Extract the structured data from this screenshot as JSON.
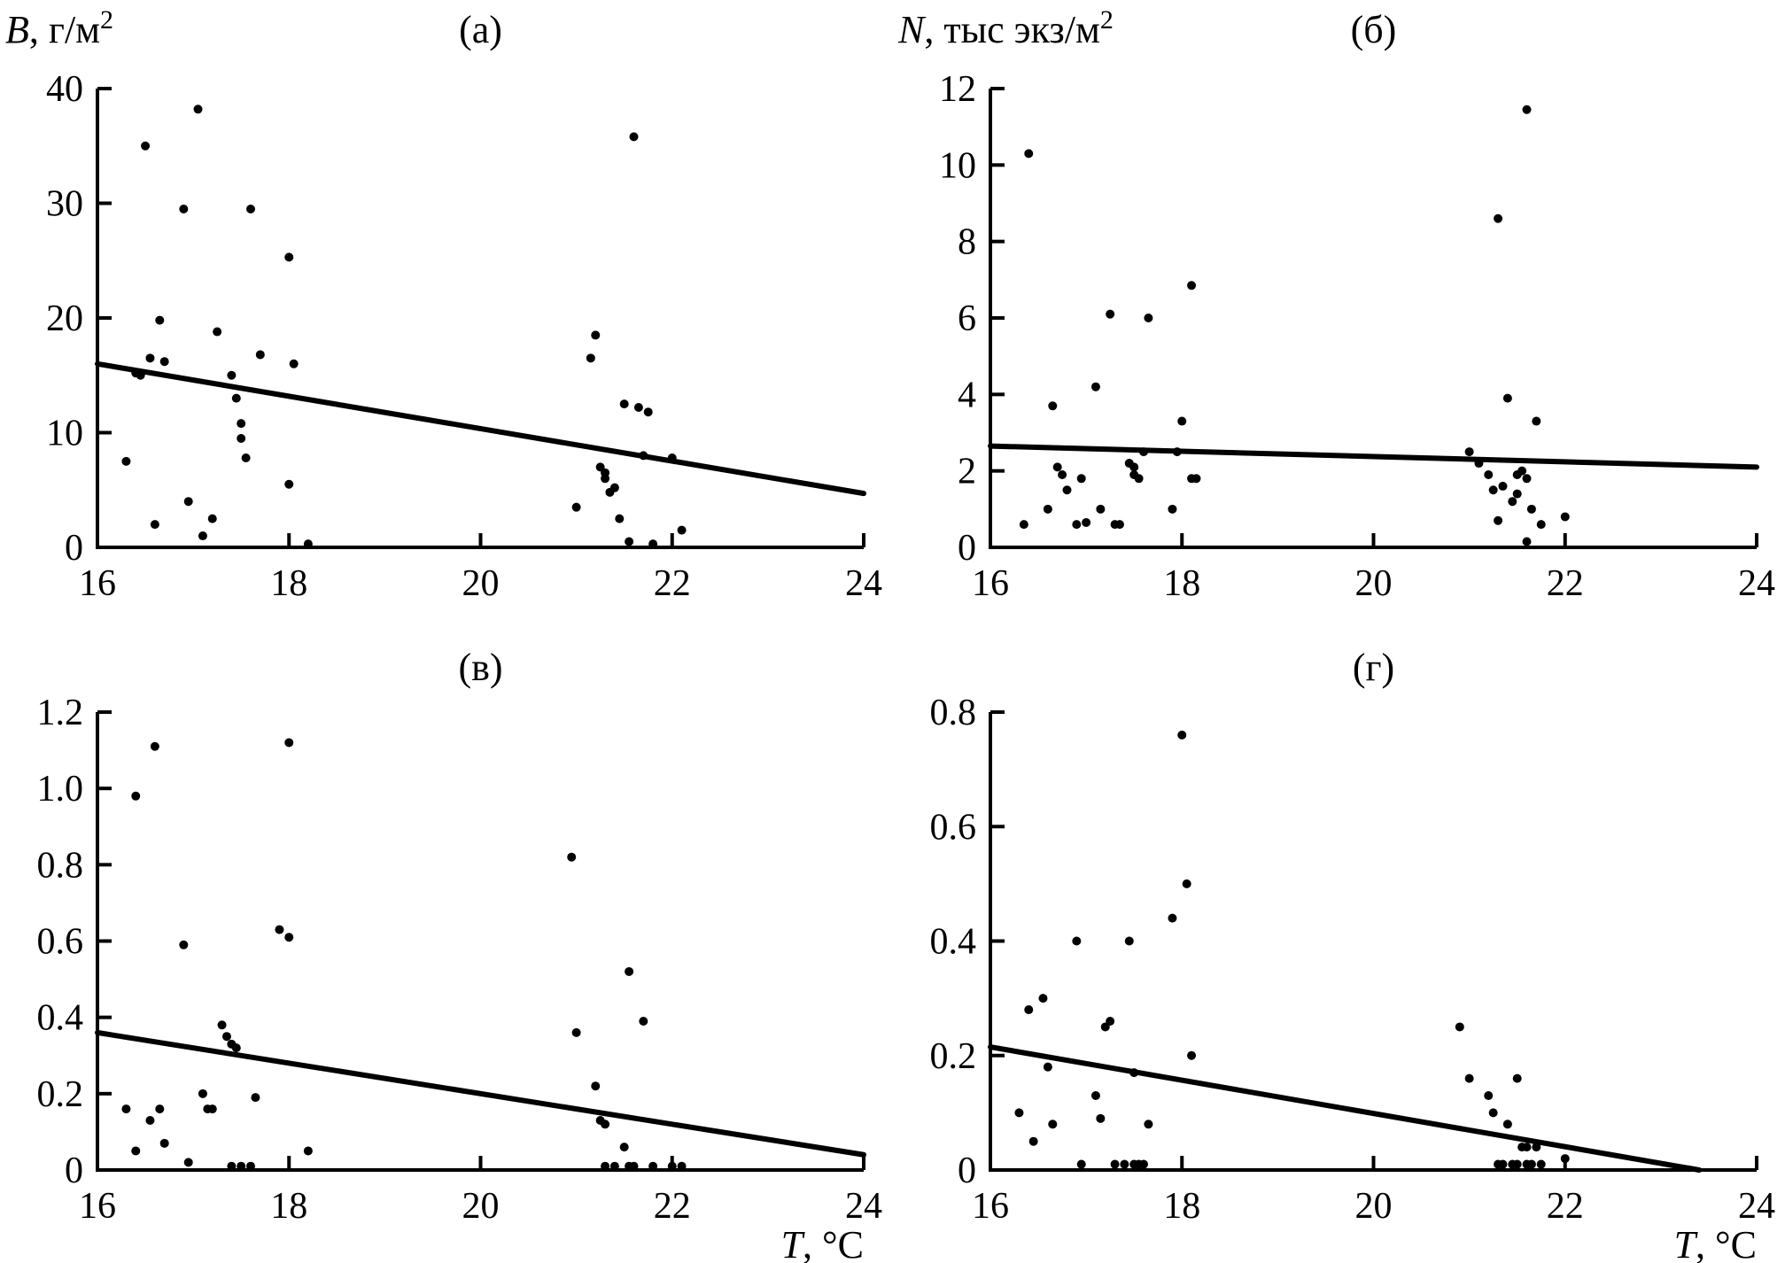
{
  "figure": {
    "background": "#ffffff",
    "ink": "#000000",
    "description_labels": {
      "panel_a": "(а)",
      "panel_b": "(б)",
      "panel_v": "(в)",
      "panel_g": "(г)"
    }
  },
  "chart_data": [
    {
      "id": "a",
      "type": "scatter",
      "position": "top-left",
      "title": "(а)",
      "ylabel": {
        "var": "B",
        "rest": ", г/м",
        "sup": "2"
      },
      "xlabel": null,
      "row": "top",
      "xlim": [
        16,
        24
      ],
      "ylim": [
        0,
        40
      ],
      "xticks": [
        16,
        18,
        20,
        22,
        24
      ],
      "xtick_labels": [
        "16",
        "18",
        "20",
        "22",
        "24"
      ],
      "yticks": [
        0,
        10,
        20,
        30,
        40
      ],
      "ytick_labels": [
        "0",
        "10",
        "20",
        "30",
        "40"
      ],
      "trend": {
        "x1": 16,
        "y1": 16.0,
        "x2": 24,
        "y2": 4.7
      },
      "points": [
        [
          16.3,
          7.5
        ],
        [
          16.4,
          15.2
        ],
        [
          16.45,
          15.0
        ],
        [
          16.5,
          35.0
        ],
        [
          16.55,
          16.5
        ],
        [
          16.6,
          2.0
        ],
        [
          16.65,
          19.8
        ],
        [
          16.7,
          16.2
        ],
        [
          16.9,
          29.5
        ],
        [
          16.95,
          4.0
        ],
        [
          17.05,
          38.2
        ],
        [
          17.1,
          1.0
        ],
        [
          17.2,
          2.5
        ],
        [
          17.25,
          18.8
        ],
        [
          17.4,
          15.0
        ],
        [
          17.45,
          13.0
        ],
        [
          17.5,
          10.8
        ],
        [
          17.5,
          9.5
        ],
        [
          17.55,
          7.8
        ],
        [
          17.6,
          29.5
        ],
        [
          17.7,
          16.8
        ],
        [
          18.0,
          25.3
        ],
        [
          18.0,
          5.5
        ],
        [
          18.05,
          16.0
        ],
        [
          18.2,
          0.3
        ],
        [
          21.0,
          3.5
        ],
        [
          21.15,
          16.5
        ],
        [
          21.2,
          18.5
        ],
        [
          21.25,
          7.0
        ],
        [
          21.3,
          6.5
        ],
        [
          21.3,
          6.0
        ],
        [
          21.35,
          4.8
        ],
        [
          21.4,
          5.2
        ],
        [
          21.45,
          2.5
        ],
        [
          21.5,
          12.5
        ],
        [
          21.55,
          0.5
        ],
        [
          21.6,
          35.8
        ],
        [
          21.65,
          12.2
        ],
        [
          21.7,
          8.0
        ],
        [
          21.75,
          11.8
        ],
        [
          21.8,
          0.3
        ],
        [
          22.0,
          7.8
        ],
        [
          22.1,
          1.5
        ]
      ]
    },
    {
      "id": "b",
      "type": "scatter",
      "position": "top-right",
      "title": "(б)",
      "ylabel": {
        "var": "N",
        "rest": ", тыс экз/м",
        "sup": "2"
      },
      "xlabel": null,
      "row": "top",
      "xlim": [
        16,
        24
      ],
      "ylim": [
        0,
        12
      ],
      "xticks": [
        16,
        18,
        20,
        22,
        24
      ],
      "xtick_labels": [
        "16",
        "18",
        "20",
        "22",
        "24"
      ],
      "yticks": [
        0,
        2,
        4,
        6,
        8,
        10,
        12
      ],
      "ytick_labels": [
        "0",
        "2",
        "4",
        "6",
        "8",
        "10",
        "12"
      ],
      "trend": {
        "x1": 16,
        "y1": 2.65,
        "x2": 24,
        "y2": 2.1
      },
      "points": [
        [
          16.35,
          0.6
        ],
        [
          16.4,
          10.3
        ],
        [
          16.6,
          1.0
        ],
        [
          16.65,
          3.7
        ],
        [
          16.7,
          2.1
        ],
        [
          16.75,
          1.9
        ],
        [
          16.8,
          1.5
        ],
        [
          16.9,
          0.6
        ],
        [
          16.95,
          1.8
        ],
        [
          17.0,
          0.65
        ],
        [
          17.1,
          4.2
        ],
        [
          17.15,
          1.0
        ],
        [
          17.25,
          6.1
        ],
        [
          17.3,
          0.6
        ],
        [
          17.35,
          0.6
        ],
        [
          17.45,
          2.2
        ],
        [
          17.5,
          1.9
        ],
        [
          17.5,
          2.1
        ],
        [
          17.55,
          1.8
        ],
        [
          17.6,
          2.5
        ],
        [
          17.65,
          6.0
        ],
        [
          17.9,
          1.0
        ],
        [
          17.95,
          2.5
        ],
        [
          18.0,
          3.3
        ],
        [
          18.1,
          6.85
        ],
        [
          18.1,
          1.8
        ],
        [
          18.15,
          1.8
        ],
        [
          21.0,
          2.5
        ],
        [
          21.1,
          2.2
        ],
        [
          21.2,
          1.9
        ],
        [
          21.25,
          1.5
        ],
        [
          21.3,
          8.6
        ],
        [
          21.3,
          0.7
        ],
        [
          21.35,
          1.6
        ],
        [
          21.4,
          3.9
        ],
        [
          21.45,
          1.2
        ],
        [
          21.5,
          1.9
        ],
        [
          21.5,
          1.4
        ],
        [
          21.55,
          2.0
        ],
        [
          21.6,
          1.8
        ],
        [
          21.6,
          11.45
        ],
        [
          21.6,
          0.15
        ],
        [
          21.65,
          1.0
        ],
        [
          21.7,
          3.3
        ],
        [
          21.75,
          0.6
        ],
        [
          22.0,
          0.8
        ]
      ]
    },
    {
      "id": "v",
      "type": "scatter",
      "position": "bottom-left",
      "title": "(в)",
      "ylabel": null,
      "xlabel": {
        "var": "T",
        "rest": ", °C"
      },
      "row": "bottom",
      "xlim": [
        16,
        24
      ],
      "ylim": [
        0,
        1.2
      ],
      "xticks": [
        16,
        18,
        20,
        22,
        24
      ],
      "xtick_labels": [
        "16",
        "18",
        "20",
        "22",
        "24"
      ],
      "yticks": [
        0,
        0.2,
        0.4,
        0.6,
        0.8,
        1.0,
        1.2
      ],
      "ytick_labels": [
        "0",
        "0.2",
        "0.4",
        "0.6",
        "0.8",
        "1.0",
        "1.2"
      ],
      "trend": {
        "x1": 16,
        "y1": 0.36,
        "x2": 24,
        "y2": 0.04
      },
      "points": [
        [
          16.3,
          0.16
        ],
        [
          16.4,
          0.98
        ],
        [
          16.4,
          0.05
        ],
        [
          16.55,
          0.13
        ],
        [
          16.6,
          1.11
        ],
        [
          16.65,
          0.16
        ],
        [
          16.7,
          0.07
        ],
        [
          16.9,
          0.59
        ],
        [
          16.95,
          0.02
        ],
        [
          17.1,
          0.2
        ],
        [
          17.15,
          0.16
        ],
        [
          17.2,
          0.16
        ],
        [
          17.3,
          0.38
        ],
        [
          17.35,
          0.35
        ],
        [
          17.4,
          0.33
        ],
        [
          17.4,
          0.01
        ],
        [
          17.45,
          0.32
        ],
        [
          17.5,
          0.01
        ],
        [
          17.6,
          0.01
        ],
        [
          17.65,
          0.19
        ],
        [
          17.9,
          0.63
        ],
        [
          18.0,
          1.12
        ],
        [
          18.0,
          0.61
        ],
        [
          18.2,
          0.05
        ],
        [
          20.95,
          0.82
        ],
        [
          21.0,
          0.36
        ],
        [
          21.2,
          0.22
        ],
        [
          21.25,
          0.13
        ],
        [
          21.3,
          0.12
        ],
        [
          21.3,
          0.01
        ],
        [
          21.4,
          0.01
        ],
        [
          21.5,
          0.06
        ],
        [
          21.55,
          0.52
        ],
        [
          21.55,
          0.01
        ],
        [
          21.6,
          0.01
        ],
        [
          21.7,
          0.39
        ],
        [
          21.8,
          0.01
        ],
        [
          22.0,
          0.01
        ],
        [
          22.1,
          0.01
        ]
      ]
    },
    {
      "id": "g",
      "type": "scatter",
      "position": "bottom-right",
      "title": "(г)",
      "ylabel": null,
      "xlabel": {
        "var": "T",
        "rest": ", °C"
      },
      "row": "bottom",
      "xlim": [
        16,
        24
      ],
      "ylim": [
        0,
        0.8
      ],
      "xticks": [
        16,
        18,
        20,
        22,
        24
      ],
      "xtick_labels": [
        "16",
        "18",
        "20",
        "22",
        "24"
      ],
      "yticks": [
        0,
        0.2,
        0.4,
        0.6,
        0.8
      ],
      "ytick_labels": [
        "0",
        "0.2",
        "0.4",
        "0.6",
        "0.8"
      ],
      "trend": {
        "x1": 16,
        "y1": 0.215,
        "x2": 23.4,
        "y2": 0.0
      },
      "points": [
        [
          16.3,
          0.1
        ],
        [
          16.4,
          0.28
        ],
        [
          16.45,
          0.05
        ],
        [
          16.55,
          0.3
        ],
        [
          16.6,
          0.18
        ],
        [
          16.65,
          0.08
        ],
        [
          16.9,
          0.4
        ],
        [
          16.95,
          0.01
        ],
        [
          17.1,
          0.13
        ],
        [
          17.15,
          0.09
        ],
        [
          17.2,
          0.25
        ],
        [
          17.25,
          0.26
        ],
        [
          17.3,
          0.01
        ],
        [
          17.4,
          0.01
        ],
        [
          17.45,
          0.4
        ],
        [
          17.5,
          0.17
        ],
        [
          17.5,
          0.01
        ],
        [
          17.55,
          0.01
        ],
        [
          17.6,
          0.01
        ],
        [
          17.65,
          0.08
        ],
        [
          17.9,
          0.44
        ],
        [
          18.0,
          0.76
        ],
        [
          18.05,
          0.5
        ],
        [
          18.1,
          0.2
        ],
        [
          20.9,
          0.25
        ],
        [
          21.0,
          0.16
        ],
        [
          21.2,
          0.13
        ],
        [
          21.25,
          0.1
        ],
        [
          21.3,
          0.01
        ],
        [
          21.35,
          0.01
        ],
        [
          21.4,
          0.08
        ],
        [
          21.45,
          0.01
        ],
        [
          21.5,
          0.16
        ],
        [
          21.5,
          0.01
        ],
        [
          21.55,
          0.04
        ],
        [
          21.6,
          0.01
        ],
        [
          21.6,
          0.04
        ],
        [
          21.65,
          0.01
        ],
        [
          21.7,
          0.04
        ],
        [
          21.75,
          0.01
        ],
        [
          22.0,
          0.02
        ]
      ]
    }
  ]
}
